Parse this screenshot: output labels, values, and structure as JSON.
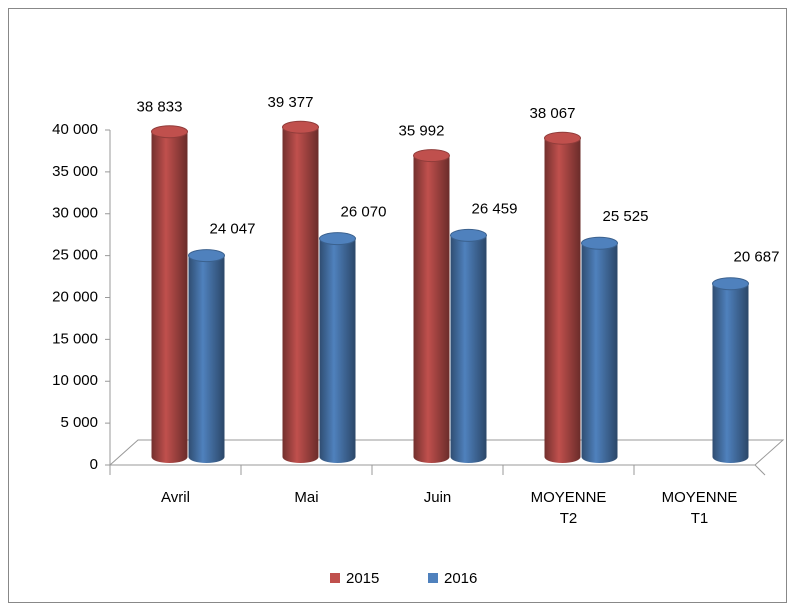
{
  "chart_data": {
    "type": "bar3d",
    "categories": [
      "Avril",
      "Mai",
      "Juin",
      "MOYENNE T2",
      "MOYENNE T1"
    ],
    "series": [
      {
        "name": "2015",
        "color": "#c0504d",
        "values": [
          38833,
          39377,
          35992,
          38067,
          null
        ],
        "value_labels": [
          "38 833",
          "39 377",
          "35 992",
          "38 067",
          null
        ]
      },
      {
        "name": "2016",
        "color": "#4f81bd",
        "values": [
          24047,
          26070,
          26459,
          25525,
          20687
        ],
        "value_labels": [
          "24 047",
          "26 070",
          "26 459",
          "25 525",
          "20 687"
        ]
      }
    ],
    "ylim": [
      0,
      40000
    ],
    "yticks": [
      0,
      {
        "value": 5000,
        "label": "5 000"
      },
      {
        "value": 10000,
        "label": "10 000"
      },
      {
        "value": 15000,
        "label": "15 000"
      },
      {
        "value": 20000,
        "label": "20 000"
      },
      {
        "value": 25000,
        "label": "25 000"
      },
      {
        "value": 30000,
        "label": "30 000"
      },
      {
        "value": 35000,
        "label": "35 000"
      },
      {
        "value": 40000,
        "label": "40 000"
      }
    ],
    "legend": "bottom",
    "grid": false
  }
}
